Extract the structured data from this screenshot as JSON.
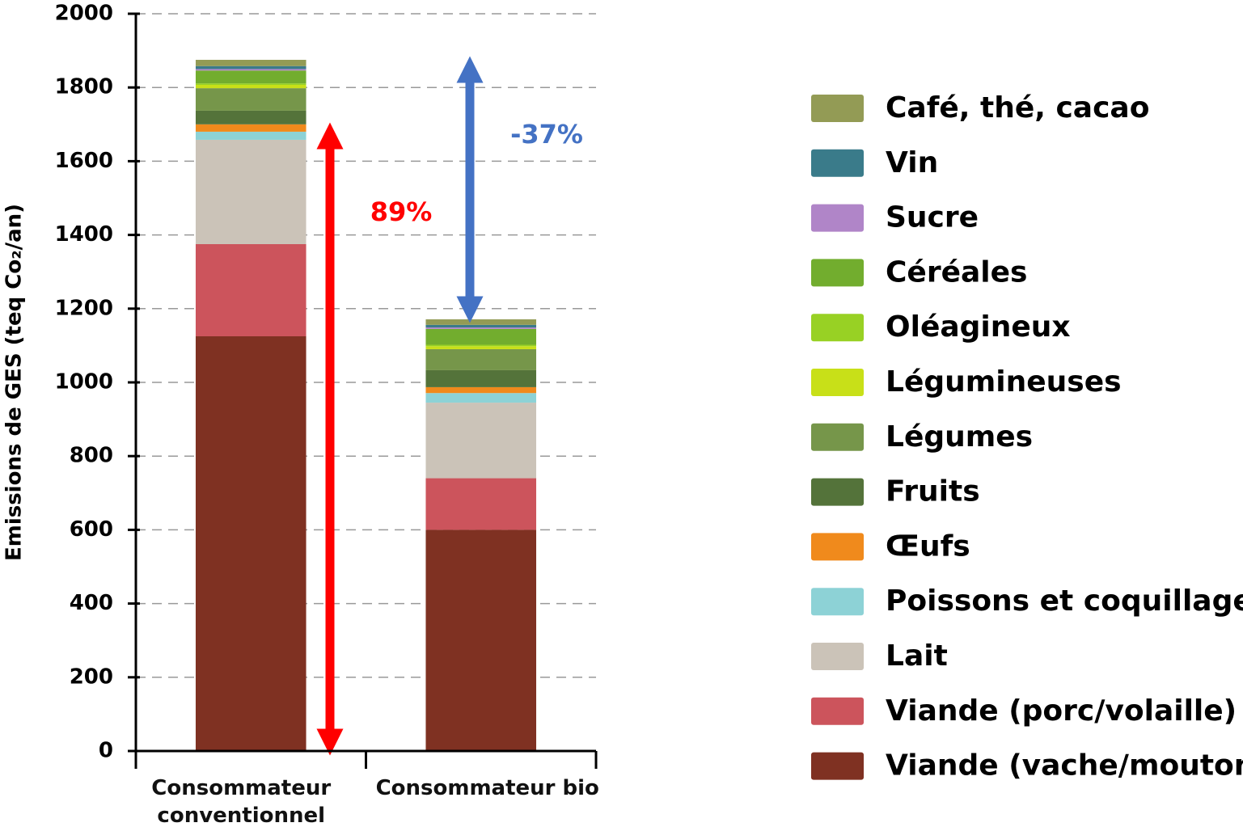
{
  "chart_data": {
    "type": "stacked_bar",
    "y_label": "Emissions de GES (teq Co₂/an)",
    "categories": [
      "Consommateur conventionnel",
      "Consommateur bio"
    ],
    "ylim": [
      0,
      2000
    ],
    "yticks": [
      0,
      200,
      400,
      600,
      800,
      1000,
      1200,
      1400,
      1600,
      1800,
      2000
    ],
    "grid": true,
    "legend": "right",
    "annotations": [
      "89%",
      "-37%"
    ],
    "series": [
      {
        "name": "Viande (vache/mouton)",
        "color": "#7f3122",
        "values": [
          1125,
          600
        ]
      },
      {
        "name": "Viande (porc/volaille)",
        "color": "#cc545c",
        "values": [
          250,
          140
        ]
      },
      {
        "name": "Lait",
        "color": "#cbc3b8",
        "values": [
          283,
          205
        ]
      },
      {
        "name": "Poissons et coquillages",
        "color": "#8dd2d6",
        "values": [
          22,
          26
        ]
      },
      {
        "name": "Œufs",
        "color": "#f08a1c",
        "values": [
          20,
          16
        ]
      },
      {
        "name": "Fruits",
        "color": "#54733a",
        "values": [
          37,
          46
        ]
      },
      {
        "name": "Légumes",
        "color": "#76964a",
        "values": [
          61,
          57
        ]
      },
      {
        "name": "Légumineuses",
        "color": "#c8e018",
        "values": [
          9,
          8
        ]
      },
      {
        "name": "Oléagineux",
        "color": "#98d124",
        "values": [
          4,
          4
        ]
      },
      {
        "name": "Céréales",
        "color": "#72ad2e",
        "values": [
          35,
          43
        ]
      },
      {
        "name": "Sucre",
        "color": "#b085c8",
        "values": [
          4,
          4
        ]
      },
      {
        "name": "Vin",
        "color": "#3a7b8a",
        "values": [
          8,
          7
        ]
      },
      {
        "name": "Café, thé, cacao",
        "color": "#939b55",
        "values": [
          17,
          15
        ]
      }
    ]
  }
}
